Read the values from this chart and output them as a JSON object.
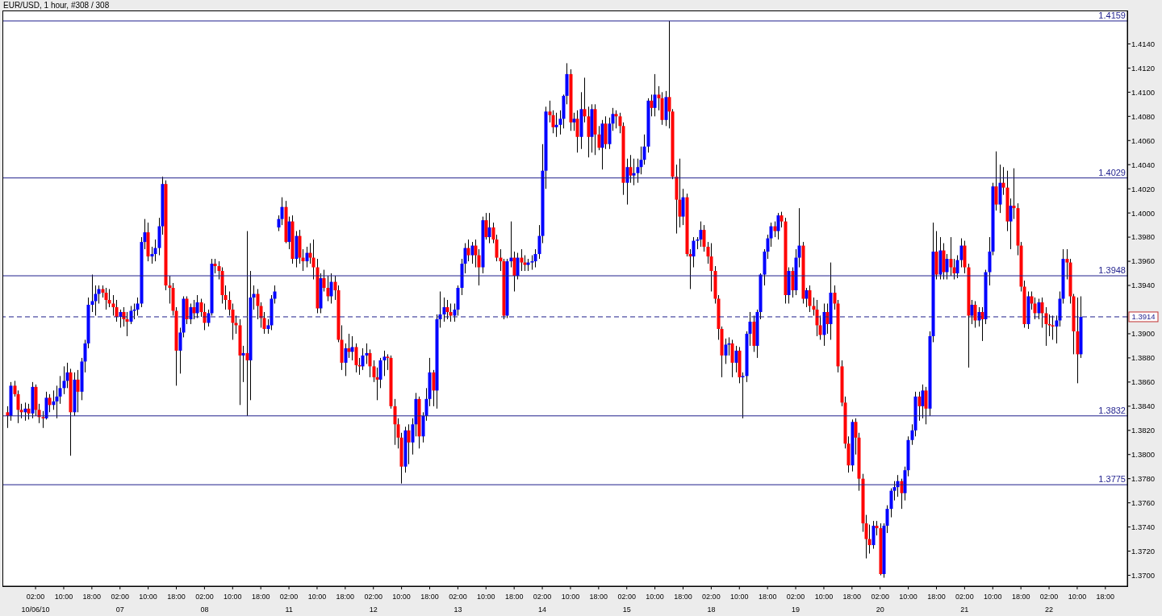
{
  "chart_data": {
    "type": "candlestick",
    "title": "EUR/USD, 1 hour, #308 / 308",
    "categories": [
      null,
      null,
      null,
      null,
      null,
      null,
      null,
      null,
      "02:00\n10/06/10",
      null,
      null,
      null,
      null,
      null,
      null,
      null,
      "10:00",
      null,
      null,
      null,
      null,
      null,
      null,
      null,
      "18:00",
      null,
      null,
      null,
      null,
      null,
      null,
      null,
      "02:00\n07",
      null,
      null,
      null,
      null,
      null,
      null,
      null,
      "10:00",
      null,
      null,
      null,
      null,
      null,
      null,
      null,
      "18:00",
      null,
      null,
      null,
      null,
      null,
      null,
      null,
      "02:00\n08",
      null,
      null,
      null,
      null,
      null,
      null,
      null,
      "10:00",
      null,
      null,
      null,
      null,
      null,
      null,
      null,
      "18:00",
      null,
      null,
      null,
      null,
      null,
      null,
      null,
      "02:00\n11",
      null,
      null,
      null,
      null,
      null,
      null,
      null,
      "10:00",
      null,
      null,
      null,
      null,
      null,
      null,
      null,
      "18:00",
      null,
      null,
      null,
      null,
      null,
      null,
      null,
      "02:00\n12",
      null,
      null,
      null,
      null,
      null,
      null,
      null,
      "10:00",
      null,
      null,
      null,
      null,
      null,
      null,
      null,
      "18:00",
      null,
      null,
      null,
      null,
      null,
      null,
      null,
      "02:00\n13",
      null,
      null,
      null,
      null,
      null,
      null,
      null,
      "10:00",
      null,
      null,
      null,
      null,
      null,
      null,
      null,
      "18:00",
      null,
      null,
      null,
      null,
      null,
      null,
      null,
      "02:00\n14",
      null,
      null,
      null,
      null,
      null,
      null,
      null,
      "10:00",
      null,
      null,
      null,
      null,
      null,
      null,
      null,
      "18:00",
      null,
      null,
      null,
      null,
      null,
      null,
      null,
      "02:00\n15",
      null,
      null,
      null,
      null,
      null,
      null,
      null,
      "10:00",
      null,
      null,
      null,
      null,
      null,
      null,
      null,
      "18:00",
      null,
      null,
      null,
      null,
      null,
      null,
      null,
      "02:00\n18",
      null,
      null,
      null,
      null,
      null,
      null,
      null,
      "10:00",
      null,
      null,
      null,
      null,
      null,
      null,
      null,
      "18:00",
      null,
      null,
      null,
      null,
      null,
      null,
      null,
      "02:00\n19",
      null,
      null,
      null,
      null,
      null,
      null,
      null,
      "10:00",
      null,
      null,
      null,
      null,
      null,
      null,
      null,
      "18:00",
      null,
      null,
      null,
      null,
      null,
      null,
      null,
      "02:00\n20",
      null,
      null,
      null,
      null,
      null,
      null,
      null,
      "10:00",
      null,
      null,
      null,
      null,
      null,
      null,
      null,
      "18:00",
      null,
      null,
      null,
      null,
      null,
      null,
      null,
      "02:00\n21",
      null,
      null,
      null,
      null,
      null,
      null,
      null,
      "10:00",
      null,
      null,
      null,
      null,
      null,
      null,
      null,
      "18:00",
      null,
      null,
      null,
      null,
      null,
      null,
      null,
      "02:00\n22",
      null,
      null,
      null,
      null,
      null,
      null,
      null,
      "10:00",
      null,
      null,
      null,
      null,
      null,
      null,
      null,
      "18:00"
    ],
    "ohlc": [
      [
        1.3835,
        1.384,
        1.3822,
        1.3832
      ],
      [
        1.3832,
        1.386,
        1.3828,
        1.3857
      ],
      [
        1.3857,
        1.3861,
        1.3848,
        1.385
      ],
      [
        1.385,
        1.3853,
        1.3826,
        1.3837
      ],
      [
        1.3837,
        1.3842,
        1.383,
        1.3835
      ],
      [
        1.3835,
        1.3843,
        1.3828,
        1.3838
      ],
      [
        1.3838,
        1.3842,
        1.3829,
        1.3834
      ],
      [
        1.3834,
        1.386,
        1.383,
        1.3856
      ],
      [
        1.3856,
        1.3858,
        1.3832,
        1.3837
      ],
      [
        1.3837,
        1.3842,
        1.3826,
        1.3831
      ],
      [
        1.3831,
        1.3836,
        1.3822,
        1.383
      ],
      [
        1.383,
        1.3852,
        1.3829,
        1.3847
      ],
      [
        1.3847,
        1.385,
        1.3835,
        1.3841
      ],
      [
        1.3841,
        1.3853,
        1.3837,
        1.3844
      ],
      [
        1.3844,
        1.3857,
        1.383,
        1.3848
      ],
      [
        1.3848,
        1.3865,
        1.3842,
        1.3855
      ],
      [
        1.3855,
        1.3873,
        1.385,
        1.3861
      ],
      [
        1.3861,
        1.3876,
        1.3855,
        1.3868
      ],
      [
        1.3868,
        1.3871,
        1.3799,
        1.3835
      ],
      [
        1.3835,
        1.3868,
        1.3832,
        1.3862
      ],
      [
        1.3862,
        1.387,
        1.3835,
        1.3852
      ],
      [
        1.3852,
        1.388,
        1.3845,
        1.3877
      ],
      [
        1.3877,
        1.3895,
        1.3868,
        1.3892
      ],
      [
        1.3892,
        1.393,
        1.3888,
        1.3924
      ],
      [
        1.3924,
        1.3949,
        1.3918,
        1.3927
      ],
      [
        1.3927,
        1.394,
        1.3915,
        1.3933
      ],
      [
        1.3933,
        1.394,
        1.3925,
        1.3937
      ],
      [
        1.3937,
        1.394,
        1.393,
        1.3934
      ],
      [
        1.3934,
        1.3938,
        1.392,
        1.3928
      ],
      [
        1.3928,
        1.3937,
        1.3922,
        1.3925
      ],
      [
        1.3925,
        1.3932,
        1.3915,
        1.3922
      ],
      [
        1.3922,
        1.3928,
        1.391,
        1.3914
      ],
      [
        1.3914,
        1.392,
        1.3905,
        1.3918
      ],
      [
        1.3918,
        1.3922,
        1.3906,
        1.3912
      ],
      [
        1.3912,
        1.3918,
        1.3898,
        1.391
      ],
      [
        1.391,
        1.3923,
        1.3908,
        1.3919
      ],
      [
        1.3919,
        1.3925,
        1.3912,
        1.392
      ],
      [
        1.392,
        1.393,
        1.3915,
        1.3925
      ],
      [
        1.3925,
        1.398,
        1.3922,
        1.3976
      ],
      [
        1.3976,
        1.3995,
        1.397,
        1.3984
      ],
      [
        1.3984,
        1.3992,
        1.396,
        1.3964
      ],
      [
        1.3964,
        1.3972,
        1.3958,
        1.3966
      ],
      [
        1.3966,
        1.3978,
        1.396,
        1.3971
      ],
      [
        1.3971,
        1.3996,
        1.3965,
        1.3989
      ],
      [
        1.3989,
        1.403,
        1.3982,
        1.4024
      ],
      [
        1.4024,
        1.4027,
        1.3936,
        1.394
      ],
      [
        1.394,
        1.3948,
        1.3925,
        1.3938
      ],
      [
        1.3938,
        1.3942,
        1.3915,
        1.3919
      ],
      [
        1.3919,
        1.3922,
        1.3857,
        1.3886
      ],
      [
        1.3886,
        1.3905,
        1.3867,
        1.3901
      ],
      [
        1.3901,
        1.3931,
        1.3897,
        1.3929
      ],
      [
        1.3929,
        1.3931,
        1.3908,
        1.3912
      ],
      [
        1.3912,
        1.3925,
        1.3908,
        1.3922
      ],
      [
        1.3922,
        1.3928,
        1.3912,
        1.3917
      ],
      [
        1.3917,
        1.3932,
        1.3913,
        1.3926
      ],
      [
        1.3926,
        1.3929,
        1.3914,
        1.3918
      ],
      [
        1.3918,
        1.3925,
        1.3903,
        1.3909
      ],
      [
        1.3909,
        1.392,
        1.3906,
        1.3917
      ],
      [
        1.3917,
        1.3962,
        1.3915,
        1.3958
      ],
      [
        1.3958,
        1.3962,
        1.395,
        1.3956
      ],
      [
        1.3956,
        1.396,
        1.3945,
        1.3952
      ],
      [
        1.3952,
        1.3955,
        1.3925,
        1.3932
      ],
      [
        1.3932,
        1.394,
        1.392,
        1.3928
      ],
      [
        1.3928,
        1.3935,
        1.3915,
        1.392
      ],
      [
        1.392,
        1.3925,
        1.3895,
        1.3909
      ],
      [
        1.3909,
        1.3915,
        1.39,
        1.3907
      ],
      [
        1.3907,
        1.3912,
        1.3841,
        1.3882
      ],
      [
        1.3882,
        1.389,
        1.386,
        1.3884
      ],
      [
        1.3884,
        1.3985,
        1.3832,
        1.3878
      ],
      [
        1.3878,
        1.3952,
        1.3845,
        1.393
      ],
      [
        1.393,
        1.394,
        1.392,
        1.3933
      ],
      [
        1.3933,
        1.3937,
        1.3912,
        1.3923
      ],
      [
        1.3923,
        1.3926,
        1.3905,
        1.3913
      ],
      [
        1.3913,
        1.3918,
        1.39,
        1.3904
      ],
      [
        1.3904,
        1.3912,
        1.39,
        1.3907
      ],
      [
        1.3907,
        1.3932,
        1.3903,
        1.3929
      ],
      [
        1.3929,
        1.394,
        1.3925,
        1.3935
      ],
      [
        1.3988,
        1.3998,
        1.3985,
        1.3995
      ],
      [
        1.3995,
        1.4013,
        1.399,
        1.4005
      ],
      [
        1.4005,
        1.401,
        1.3975,
        1.3976
      ],
      [
        1.3976,
        1.3997,
        1.397,
        1.3993
      ],
      [
        1.3993,
        1.3998,
        1.3958,
        1.3962
      ],
      [
        1.3962,
        1.3985,
        1.3955,
        1.3981
      ],
      [
        1.3981,
        1.3986,
        1.3958,
        1.3963
      ],
      [
        1.3963,
        1.397,
        1.3952,
        1.396
      ],
      [
        1.396,
        1.3972,
        1.3955,
        1.3967
      ],
      [
        1.3967,
        1.3975,
        1.3958,
        1.3963
      ],
      [
        1.3963,
        1.3978,
        1.3945,
        1.3955
      ],
      [
        1.3955,
        1.3962,
        1.3917,
        1.3921
      ],
      [
        1.3921,
        1.395,
        1.3917,
        1.3946
      ],
      [
        1.3946,
        1.3953,
        1.3935,
        1.3938
      ],
      [
        1.3938,
        1.3948,
        1.3927,
        1.3931
      ],
      [
        1.3931,
        1.395,
        1.3925,
        1.3943
      ],
      [
        1.3943,
        1.3948,
        1.3928,
        1.3936
      ],
      [
        1.3936,
        1.394,
        1.3893,
        1.3895
      ],
      [
        1.3895,
        1.3907,
        1.387,
        1.3876
      ],
      [
        1.3876,
        1.3892,
        1.3865,
        1.3888
      ],
      [
        1.3888,
        1.39,
        1.388,
        1.3885
      ],
      [
        1.3885,
        1.3898,
        1.3878,
        1.3889
      ],
      [
        1.3889,
        1.3892,
        1.3868,
        1.3874
      ],
      [
        1.3874,
        1.388,
        1.3866,
        1.3873
      ],
      [
        1.3873,
        1.3888,
        1.387,
        1.3882
      ],
      [
        1.3882,
        1.3892,
        1.3875,
        1.3884
      ],
      [
        1.3884,
        1.3887,
        1.3864,
        1.3873
      ],
      [
        1.3873,
        1.3878,
        1.386,
        1.3864
      ],
      [
        1.3864,
        1.3872,
        1.3845,
        1.3862
      ],
      [
        1.3862,
        1.388,
        1.3855,
        1.3878
      ],
      [
        1.3878,
        1.3886,
        1.3865,
        1.3881
      ],
      [
        1.3881,
        1.3883,
        1.387,
        1.388
      ],
      [
        1.388,
        1.3882,
        1.3838,
        1.384
      ],
      [
        1.384,
        1.3846,
        1.3808,
        1.3825
      ],
      [
        1.3825,
        1.383,
        1.3805,
        1.3814
      ],
      [
        1.3814,
        1.3818,
        1.3776,
        1.379
      ],
      [
        1.379,
        1.3823,
        1.3785,
        1.382
      ],
      [
        1.382,
        1.3825,
        1.3792,
        1.381
      ],
      [
        1.381,
        1.383,
        1.38,
        1.3825
      ],
      [
        1.3825,
        1.3851,
        1.3815,
        1.3846
      ],
      [
        1.3846,
        1.3848,
        1.3805,
        1.3815
      ],
      [
        1.3815,
        1.3835,
        1.381,
        1.3832
      ],
      [
        1.3832,
        1.3855,
        1.3828,
        1.3846
      ],
      [
        1.3846,
        1.388,
        1.384,
        1.3868
      ],
      [
        1.3868,
        1.387,
        1.384,
        1.3853
      ],
      [
        1.3853,
        1.3916,
        1.3838,
        1.3912
      ],
      [
        1.3912,
        1.3935,
        1.3905,
        1.3916
      ],
      [
        1.3916,
        1.393,
        1.391,
        1.3922
      ],
      [
        1.3922,
        1.3928,
        1.3912,
        1.3918
      ],
      [
        1.3918,
        1.3925,
        1.391,
        1.3915
      ],
      [
        1.3915,
        1.3925,
        1.391,
        1.392
      ],
      [
        1.392,
        1.394,
        1.3915,
        1.3938
      ],
      [
        1.3938,
        1.3962,
        1.3932,
        1.3958
      ],
      [
        1.3958,
        1.3975,
        1.395,
        1.3971
      ],
      [
        1.3971,
        1.3978,
        1.396,
        1.3965
      ],
      [
        1.3965,
        1.3976,
        1.3958,
        1.3973
      ],
      [
        1.3973,
        1.3978,
        1.3955,
        1.3965
      ],
      [
        1.3965,
        1.397,
        1.394,
        1.3955
      ],
      [
        1.3955,
        1.3997,
        1.395,
        1.3994
      ],
      [
        1.3994,
        1.4,
        1.3978,
        1.398
      ],
      [
        1.398,
        1.4,
        1.3975,
        1.3988
      ],
      [
        1.3988,
        1.3992,
        1.3975,
        1.3978
      ],
      [
        1.3978,
        1.3982,
        1.396,
        1.3963
      ],
      [
        1.3963,
        1.397,
        1.3952,
        1.396
      ],
      [
        1.396,
        1.3962,
        1.3912,
        1.3915
      ],
      [
        1.3915,
        1.3962,
        1.3913,
        1.396
      ],
      [
        1.396,
        1.3993,
        1.3955,
        1.3963
      ],
      [
        1.3963,
        1.3968,
        1.3935,
        1.3948
      ],
      [
        1.3948,
        1.3967,
        1.3945,
        1.3963
      ],
      [
        1.3963,
        1.397,
        1.3952,
        1.3959
      ],
      [
        1.3959,
        1.3965,
        1.3952,
        1.3957
      ],
      [
        1.3957,
        1.3962,
        1.3952,
        1.3959
      ],
      [
        1.3959,
        1.3965,
        1.3953,
        1.396
      ],
      [
        1.396,
        1.397,
        1.3955,
        1.3966
      ],
      [
        1.3966,
        1.399,
        1.3962,
        1.3981
      ],
      [
        1.3981,
        1.4057,
        1.3975,
        1.4035
      ],
      [
        1.4035,
        1.4088,
        1.402,
        1.4084
      ],
      [
        1.4084,
        1.4093,
        1.4075,
        1.4081
      ],
      [
        1.4081,
        1.4085,
        1.4066,
        1.4071
      ],
      [
        1.4071,
        1.4083,
        1.4063,
        1.4073
      ],
      [
        1.4073,
        1.4085,
        1.4065,
        1.4078
      ],
      [
        1.4078,
        1.4098,
        1.407,
        1.4097
      ],
      [
        1.4097,
        1.4124,
        1.409,
        1.4115
      ],
      [
        1.4115,
        1.4119,
        1.4068,
        1.4075
      ],
      [
        1.4075,
        1.4083,
        1.4068,
        1.4078
      ],
      [
        1.4078,
        1.4085,
        1.405,
        1.4063
      ],
      [
        1.4063,
        1.41,
        1.4053,
        1.4086
      ],
      [
        1.4086,
        1.4112,
        1.4075,
        1.408
      ],
      [
        1.408,
        1.4088,
        1.4046,
        1.4063
      ],
      [
        1.4063,
        1.409,
        1.405,
        1.4086
      ],
      [
        1.4086,
        1.409,
        1.4048,
        1.4065
      ],
      [
        1.4065,
        1.4072,
        1.4052,
        1.4054
      ],
      [
        1.4054,
        1.4077,
        1.4036,
        1.4074
      ],
      [
        1.4074,
        1.408,
        1.4053,
        1.4057
      ],
      [
        1.4057,
        1.4079,
        1.4053,
        1.4074
      ],
      [
        1.4074,
        1.4087,
        1.4068,
        1.4082
      ],
      [
        1.4082,
        1.4085,
        1.407,
        1.408
      ],
      [
        1.408,
        1.4083,
        1.4066,
        1.4072
      ],
      [
        1.4072,
        1.4075,
        1.4015,
        1.4025
      ],
      [
        1.4025,
        1.4045,
        1.4007,
        1.4038
      ],
      [
        1.4038,
        1.4048,
        1.4025,
        1.4031
      ],
      [
        1.4031,
        1.4045,
        1.4023,
        1.4033
      ],
      [
        1.4033,
        1.4045,
        1.4025,
        1.4038
      ],
      [
        1.4038,
        1.4055,
        1.4032,
        1.4044
      ],
      [
        1.4044,
        1.4065,
        1.404,
        1.4055
      ],
      [
        1.4055,
        1.4095,
        1.405,
        1.4093
      ],
      [
        1.4093,
        1.4098,
        1.408,
        1.4087
      ],
      [
        1.4087,
        1.4115,
        1.408,
        1.4098
      ],
      [
        1.4098,
        1.4105,
        1.4085,
        1.4095
      ],
      [
        1.4095,
        1.41,
        1.4073,
        1.4077
      ],
      [
        1.4077,
        1.4101,
        1.4072,
        1.4096
      ],
      [
        1.4096,
        1.4159,
        1.407,
        1.4084
      ],
      [
        1.4084,
        1.4086,
        1.4028,
        1.403
      ],
      [
        1.403,
        1.404,
        1.3983,
        1.4011
      ],
      [
        1.4011,
        1.4045,
        1.3988,
        1.3997
      ],
      [
        1.3997,
        1.402,
        1.399,
        1.4013
      ],
      [
        1.4013,
        1.4016,
        1.3964,
        1.3966
      ],
      [
        1.3966,
        1.397,
        1.3937,
        1.3964
      ],
      [
        1.3964,
        1.398,
        1.3955,
        1.3977
      ],
      [
        1.3977,
        1.398,
        1.397,
        1.3978
      ],
      [
        1.3978,
        1.3993,
        1.3972,
        1.3986
      ],
      [
        1.3986,
        1.399,
        1.3968,
        1.3972
      ],
      [
        1.3972,
        1.3976,
        1.3958,
        1.3964
      ],
      [
        1.3964,
        1.3975,
        1.3935,
        1.3952
      ],
      [
        1.3952,
        1.3956,
        1.3925,
        1.3929
      ],
      [
        1.3929,
        1.3932,
        1.3895,
        1.3904
      ],
      [
        1.3904,
        1.3906,
        1.3864,
        1.3882
      ],
      [
        1.3882,
        1.3896,
        1.3875,
        1.3891
      ],
      [
        1.3891,
        1.3897,
        1.3882,
        1.3892
      ],
      [
        1.3892,
        1.3895,
        1.3864,
        1.3876
      ],
      [
        1.3876,
        1.389,
        1.3868,
        1.3886
      ],
      [
        1.3886,
        1.3889,
        1.3859,
        1.3864
      ],
      [
        1.3864,
        1.3868,
        1.383,
        1.3865
      ],
      [
        1.3865,
        1.3902,
        1.386,
        1.39
      ],
      [
        1.39,
        1.3918,
        1.389,
        1.391
      ],
      [
        1.391,
        1.3915,
        1.3885,
        1.389
      ],
      [
        1.389,
        1.392,
        1.388,
        1.3918
      ],
      [
        1.3918,
        1.395,
        1.3912,
        1.3949
      ],
      [
        1.3949,
        1.397,
        1.394,
        1.3968
      ],
      [
        1.3968,
        1.3982,
        1.3962,
        1.3979
      ],
      [
        1.3979,
        1.3992,
        1.3972,
        1.3989
      ],
      [
        1.3989,
        1.3993,
        1.398,
        1.3985
      ],
      [
        1.3985,
        1.4,
        1.3978,
        1.3998
      ],
      [
        1.3998,
        1.4001,
        1.3988,
        1.3993
      ],
      [
        1.3993,
        1.3996,
        1.3925,
        1.3932
      ],
      [
        1.3932,
        1.3955,
        1.3925,
        1.3952
      ],
      [
        1.3952,
        1.3955,
        1.393,
        1.3936
      ],
      [
        1.3936,
        1.397,
        1.3932,
        1.3963
      ],
      [
        1.3963,
        1.4004,
        1.3955,
        1.3973
      ],
      [
        1.3973,
        1.3976,
        1.3925,
        1.3929
      ],
      [
        1.3929,
        1.3938,
        1.3922,
        1.3936
      ],
      [
        1.3936,
        1.394,
        1.3918,
        1.3923
      ],
      [
        1.3923,
        1.393,
        1.3915,
        1.392
      ],
      [
        1.392,
        1.3928,
        1.3898,
        1.3907
      ],
      [
        1.3907,
        1.3915,
        1.3895,
        1.3899
      ],
      [
        1.3899,
        1.3925,
        1.389,
        1.3918
      ],
      [
        1.3918,
        1.3925,
        1.39,
        1.3908
      ],
      [
        1.3908,
        1.3959,
        1.3895,
        1.3934
      ],
      [
        1.3934,
        1.394,
        1.392,
        1.3925
      ],
      [
        1.3925,
        1.3928,
        1.3868,
        1.3873
      ],
      [
        1.3873,
        1.3878,
        1.384,
        1.3843
      ],
      [
        1.3843,
        1.3848,
        1.3805,
        1.3809
      ],
      [
        1.3809,
        1.3815,
        1.3785,
        1.3791
      ],
      [
        1.3791,
        1.3829,
        1.3786,
        1.3827
      ],
      [
        1.3827,
        1.383,
        1.38,
        1.3814
      ],
      [
        1.3814,
        1.3818,
        1.377,
        1.378
      ],
      [
        1.378,
        1.3784,
        1.3736,
        1.3743
      ],
      [
        1.3743,
        1.375,
        1.3714,
        1.373
      ],
      [
        1.373,
        1.3742,
        1.3718,
        1.3725
      ],
      [
        1.3725,
        1.3745,
        1.3722,
        1.3741
      ],
      [
        1.3741,
        1.3745,
        1.3733,
        1.3739
      ],
      [
        1.3739,
        1.3743,
        1.37,
        1.3701
      ],
      [
        1.3701,
        1.3743,
        1.3698,
        1.3741
      ],
      [
        1.3741,
        1.3758,
        1.3735,
        1.3755
      ],
      [
        1.3755,
        1.3772,
        1.3748,
        1.377
      ],
      [
        1.377,
        1.3778,
        1.3762,
        1.3773
      ],
      [
        1.3773,
        1.3783,
        1.3765,
        1.3778
      ],
      [
        1.3778,
        1.378,
        1.3755,
        1.3768
      ],
      [
        1.3768,
        1.379,
        1.3762,
        1.3787
      ],
      [
        1.3787,
        1.3815,
        1.3782,
        1.3812
      ],
      [
        1.3812,
        1.3825,
        1.3808,
        1.382
      ],
      [
        1.382,
        1.3852,
        1.3815,
        1.3848
      ],
      [
        1.3848,
        1.3852,
        1.3828,
        1.384
      ],
      [
        1.384,
        1.3858,
        1.383,
        1.3853
      ],
      [
        1.3853,
        1.3856,
        1.3825,
        1.3838
      ],
      [
        1.3838,
        1.3902,
        1.3832,
        1.3898
      ],
      [
        1.3898,
        1.3992,
        1.3893,
        1.3968
      ],
      [
        1.3968,
        1.3985,
        1.3945,
        1.3949
      ],
      [
        1.3949,
        1.398,
        1.3945,
        1.3969
      ],
      [
        1.3969,
        1.3975,
        1.3945,
        1.3951
      ],
      [
        1.3951,
        1.3966,
        1.3945,
        1.3962
      ],
      [
        1.3962,
        1.398,
        1.3948,
        1.3955
      ],
      [
        1.3955,
        1.3962,
        1.3945,
        1.395
      ],
      [
        1.395,
        1.3965,
        1.3946,
        1.3961
      ],
      [
        1.3961,
        1.3979,
        1.3955,
        1.3973
      ],
      [
        1.3973,
        1.3977,
        1.395,
        1.3955
      ],
      [
        1.3955,
        1.3958,
        1.3872,
        1.3915
      ],
      [
        1.3915,
        1.3928,
        1.3908,
        1.3924
      ],
      [
        1.3924,
        1.3927,
        1.3905,
        1.3911
      ],
      [
        1.3911,
        1.3922,
        1.3906,
        1.3918
      ],
      [
        1.3918,
        1.3922,
        1.3894,
        1.3912
      ],
      [
        1.3912,
        1.3953,
        1.3908,
        1.3951
      ],
      [
        1.3951,
        1.398,
        1.394,
        1.3968
      ],
      [
        1.3968,
        1.4025,
        1.3965,
        1.4022
      ],
      [
        1.4022,
        1.4051,
        1.4002,
        1.4007
      ],
      [
        1.4007,
        1.404,
        1.4,
        1.4025
      ],
      [
        1.4025,
        1.4038,
        1.4015,
        1.4021
      ],
      [
        1.4021,
        1.4035,
        1.3985,
        1.3993
      ],
      [
        1.3993,
        1.4012,
        1.397,
        1.4006
      ],
      [
        1.4006,
        1.4037,
        1.3995,
        1.4004
      ],
      [
        1.4004,
        1.4008,
        1.3965,
        1.3973
      ],
      [
        1.3973,
        1.3976,
        1.3935,
        1.3939
      ],
      [
        1.3939,
        1.3944,
        1.3905,
        1.3908
      ],
      [
        1.3908,
        1.3935,
        1.3904,
        1.3931
      ],
      [
        1.3931,
        1.3935,
        1.392,
        1.3925
      ],
      [
        1.3925,
        1.393,
        1.3912,
        1.3917
      ],
      [
        1.3917,
        1.3929,
        1.3912,
        1.3926
      ],
      [
        1.3926,
        1.393,
        1.3905,
        1.3917
      ],
      [
        1.3917,
        1.3922,
        1.389,
        1.3908
      ],
      [
        1.3908,
        1.3916,
        1.3898,
        1.3907
      ],
      [
        1.3907,
        1.3915,
        1.3895,
        1.3906
      ],
      [
        1.3906,
        1.3915,
        1.3892,
        1.3911
      ],
      [
        1.3911,
        1.3935,
        1.3906,
        1.3929
      ],
      [
        1.3929,
        1.397,
        1.3925,
        1.3962
      ],
      [
        1.3962,
        1.397,
        1.3945,
        1.3959
      ],
      [
        1.3959,
        1.3962,
        1.3925,
        1.3931
      ],
      [
        1.3931,
        1.3933,
        1.3883,
        1.3902
      ],
      [
        1.3902,
        1.393,
        1.3859,
        1.3883
      ],
      [
        1.3883,
        1.3931,
        1.388,
        1.3914
      ],
      null,
      null,
      null,
      null,
      null,
      null,
      null
    ],
    "colors": [
      "#ff0000",
      "#0000ff",
      "#ff0000",
      "#ff0000",
      "#ff0000",
      "#0000ff",
      "#ff0000",
      "#0000ff",
      "#ff0000",
      "#ff0000",
      "#ff0000",
      "#0000ff",
      "#ff0000",
      "#0000ff",
      "#0000ff",
      "#0000ff",
      "#0000ff",
      "#0000ff",
      "#ff0000",
      "#0000ff",
      "#ff0000",
      "#0000ff",
      "#0000ff",
      "#0000ff",
      "#0000ff",
      "#0000ff",
      "#0000ff",
      "#ff0000",
      "#ff0000",
      "#ff0000",
      "#ff0000",
      "#ff0000",
      "#0000ff",
      "#ff0000",
      "#ff0000",
      "#0000ff",
      "#0000ff",
      "#0000ff",
      "#0000ff",
      "#0000ff",
      "#ff0000",
      "#0000ff",
      "#0000ff",
      "#0000ff",
      "#0000ff",
      "#ff0000",
      "#ff0000",
      "#ff0000",
      "#ff0000",
      "#0000ff",
      "#0000ff",
      "#ff0000",
      "#0000ff",
      "#ff0000",
      "#0000ff",
      "#ff0000",
      "#ff0000",
      "#0000ff",
      "#0000ff",
      "#ff0000",
      "#ff0000",
      "#ff0000",
      "#ff0000",
      "#ff0000",
      "#ff0000",
      "#ff0000",
      "#ff0000",
      "#0000ff",
      "#ff0000",
      "#0000ff",
      "#0000ff",
      "#ff0000",
      "#ff0000",
      "#ff0000",
      "#0000ff",
      "#0000ff",
      "#0000ff",
      "#0000ff",
      "#0000ff",
      "#ff0000",
      "#0000ff",
      "#ff0000",
      "#0000ff",
      "#ff0000",
      "#ff0000",
      "#0000ff",
      "#ff0000",
      "#ff0000",
      "#ff0000",
      "#0000ff",
      "#ff0000",
      "#ff0000",
      "#0000ff",
      "#ff0000",
      "#ff0000",
      "#ff0000",
      "#0000ff",
      "#ff0000",
      "#0000ff",
      "#ff0000",
      "#ff0000",
      "#0000ff",
      "#0000ff",
      "#ff0000",
      "#ff0000",
      "#ff0000",
      "#0000ff",
      "#0000ff",
      "#ff0000",
      "#ff0000",
      "#ff0000",
      "#ff0000",
      "#ff0000",
      "#0000ff",
      "#ff0000",
      "#0000ff",
      "#0000ff",
      "#ff0000",
      "#0000ff",
      "#0000ff",
      "#0000ff",
      "#ff0000",
      "#0000ff",
      "#0000ff",
      "#0000ff",
      "#ff0000",
      "#ff0000",
      "#0000ff",
      "#0000ff",
      "#0000ff",
      "#0000ff",
      "#ff0000",
      "#0000ff",
      "#ff0000",
      "#ff0000",
      "#0000ff",
      "#ff0000",
      "#0000ff",
      "#ff0000",
      "#ff0000",
      "#ff0000",
      "#ff0000",
      "#0000ff",
      "#0000ff",
      "#ff0000",
      "#0000ff",
      "#ff0000",
      "#ff0000",
      "#0000ff",
      "#0000ff",
      "#0000ff",
      "#0000ff",
      "#0000ff",
      "#0000ff",
      "#ff0000",
      "#ff0000",
      "#0000ff",
      "#0000ff",
      "#0000ff",
      "#0000ff",
      "#ff0000",
      "#0000ff",
      "#ff0000",
      "#0000ff",
      "#ff0000",
      "#ff0000",
      "#0000ff",
      "#ff0000",
      "#ff0000",
      "#0000ff",
      "#ff0000",
      "#0000ff",
      "#0000ff",
      "#ff0000",
      "#ff0000",
      "#ff0000",
      "#0000ff",
      "#ff0000",
      "#0000ff",
      "#0000ff",
      "#0000ff",
      "#0000ff",
      "#0000ff",
      "#ff0000",
      "#0000ff",
      "#ff0000",
      "#ff0000",
      "#0000ff",
      "#ff0000",
      "#ff0000",
      "#ff0000",
      "#ff0000",
      "#0000ff",
      "#ff0000",
      "#ff0000",
      "#0000ff",
      "#0000ff",
      "#0000ff",
      "#ff0000",
      "#ff0000",
      "#ff0000",
      "#ff0000",
      "#ff0000",
      "#ff0000",
      "#0000ff",
      "#0000ff",
      "#ff0000",
      "#0000ff",
      "#ff0000",
      "#0000ff",
      "#0000ff",
      "#0000ff",
      "#ff0000",
      "#0000ff",
      "#0000ff",
      "#0000ff",
      "#0000ff",
      "#0000ff",
      "#ff0000",
      "#0000ff",
      "#ff0000",
      "#ff0000",
      "#0000ff",
      "#ff0000",
      "#0000ff",
      "#0000ff",
      "#ff0000",
      "#0000ff",
      "#ff0000",
      "#ff0000",
      "#ff0000",
      "#ff0000",
      "#0000ff",
      "#ff0000",
      "#0000ff",
      "#ff0000",
      "#ff0000",
      "#ff0000",
      "#ff0000",
      "#ff0000",
      "#0000ff",
      "#ff0000",
      "#ff0000",
      "#ff0000",
      "#ff0000",
      "#ff0000",
      "#0000ff",
      "#ff0000",
      "#ff0000",
      "#0000ff",
      "#0000ff",
      "#0000ff",
      "#0000ff",
      "#0000ff",
      "#ff0000",
      "#0000ff",
      "#0000ff",
      "#0000ff",
      "#0000ff",
      "#ff0000",
      "#0000ff",
      "#ff0000",
      "#0000ff",
      "#0000ff",
      "#ff0000",
      "#0000ff",
      "#ff0000",
      "#0000ff",
      "#ff0000",
      "#ff0000",
      "#0000ff",
      "#0000ff",
      "#ff0000",
      "#ff0000",
      "#0000ff",
      "#ff0000",
      "#0000ff",
      "#ff0000",
      "#0000ff",
      "#0000ff",
      "#0000ff",
      "#ff0000",
      "#0000ff",
      "#ff0000",
      "#ff0000",
      "#0000ff",
      "#ff0000",
      "#ff0000",
      "#ff0000",
      "#ff0000",
      "#0000ff",
      "#ff0000",
      "#ff0000",
      "#0000ff",
      "#ff0000",
      "#ff0000",
      "#ff0000",
      "#ff0000",
      "#0000ff",
      "#0000ff",
      "#0000ff",
      "#ff0000",
      "#ff0000",
      "#ff0000",
      "#ff0000",
      "#0000ff",
      null,
      null,
      null,
      null,
      null,
      null,
      null
    ],
    "color": "#000000",
    "ylim": [
      1.3691,
      1.4167
    ],
    "yticks": [
      {
        "value": 1.37,
        "label": "1.3700"
      },
      {
        "value": 1.372,
        "label": "1.3720"
      },
      {
        "value": 1.374,
        "label": "1.3740"
      },
      {
        "value": 1.376,
        "label": "1.3760"
      },
      {
        "value": 1.378,
        "label": "1.3780"
      },
      {
        "value": 1.38,
        "label": "1.3800"
      },
      {
        "value": 1.382,
        "label": "1.3820"
      },
      {
        "value": 1.384,
        "label": "1.3840"
      },
      {
        "value": 1.386,
        "label": "1.3860"
      },
      {
        "value": 1.388,
        "label": "1.3880"
      },
      {
        "value": 1.39,
        "label": "1.3900"
      },
      {
        "value": 1.394,
        "label": "1.3940"
      },
      {
        "value": 1.396,
        "label": "1.3960"
      },
      {
        "value": 1.398,
        "label": "1.3980"
      },
      {
        "value": 1.4,
        "label": "1.4000"
      },
      {
        "value": 1.402,
        "label": "1.4020"
      },
      {
        "value": 1.404,
        "label": "1.4040"
      },
      {
        "value": 1.406,
        "label": "1.4060"
      },
      {
        "value": 1.408,
        "label": "1.4080"
      },
      {
        "value": 1.41,
        "label": "1.4100"
      },
      {
        "value": 1.412,
        "label": "1.4120"
      },
      {
        "value": 1.414,
        "label": "1.4140"
      }
    ],
    "ref_lines": [
      {
        "axis": "y",
        "value": 1.4159,
        "label": "1.4159",
        "color": "#1e1e8c"
      },
      {
        "axis": "y",
        "value": 1.4029,
        "label": "1.4029",
        "color": "#1e1e8c"
      },
      {
        "axis": "y",
        "value": 1.3948,
        "label": "1.3948",
        "color": "#1e1e8c"
      },
      {
        "axis": "y",
        "value": 1.3914,
        "label": "1.3914",
        "color": "#1e1e8c",
        "line_style": "dashed"
      },
      {
        "axis": "y",
        "value": 1.3832,
        "label": "1.3832",
        "color": "#1e1e8c"
      },
      {
        "axis": "y",
        "value": 1.3775,
        "label": "1.3775",
        "color": "#1e1e8c"
      }
    ]
  }
}
